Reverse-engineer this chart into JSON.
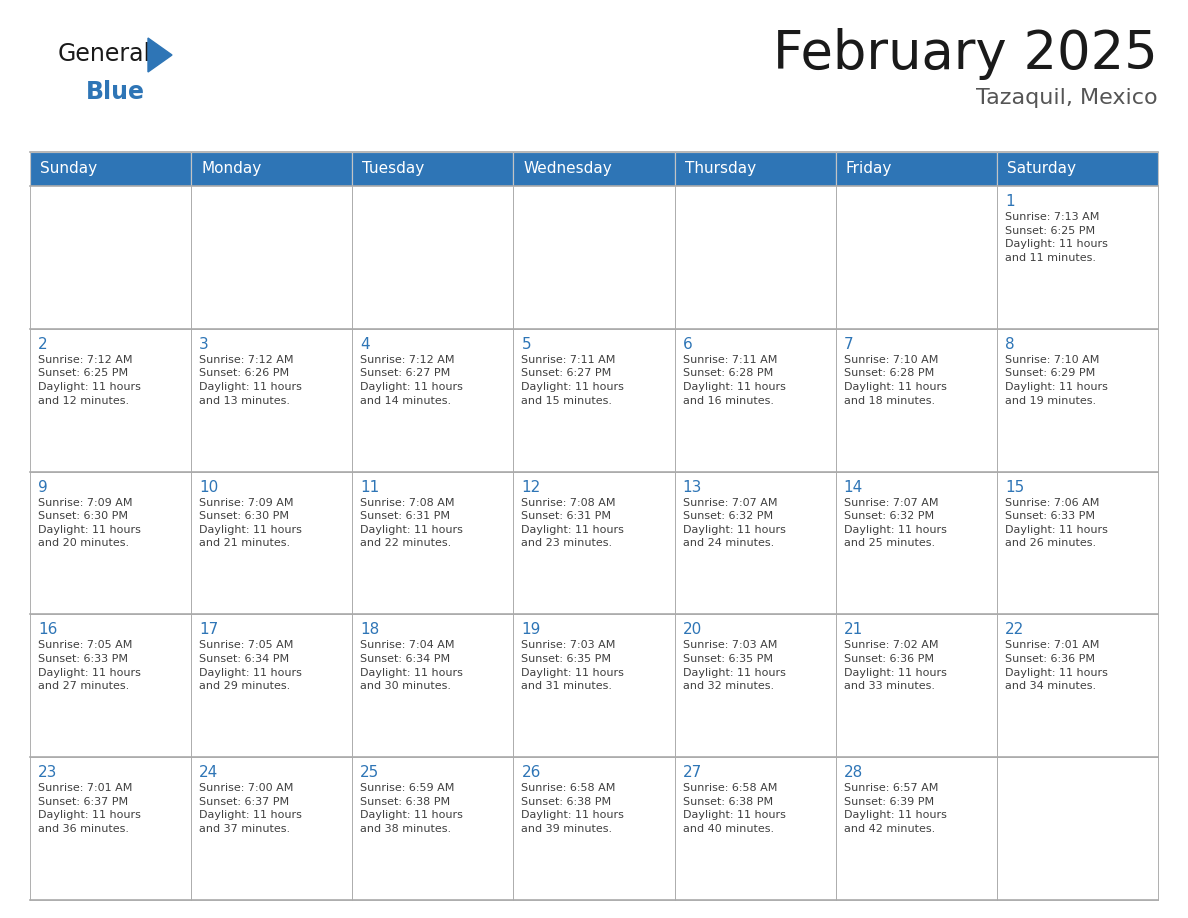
{
  "title": "February 2025",
  "subtitle": "Tazaquil, Mexico",
  "days_of_week": [
    "Sunday",
    "Monday",
    "Tuesday",
    "Wednesday",
    "Thursday",
    "Friday",
    "Saturday"
  ],
  "header_bg": "#2E75B6",
  "header_text": "#FFFFFF",
  "cell_bg": "#FFFFFF",
  "cell_border": "#AAAAAA",
  "day_num_color": "#2E75B6",
  "cell_text_color": "#404040",
  "title_color": "#1a1a1a",
  "subtitle_color": "#555555",
  "logo_general_color": "#1a1a1a",
  "logo_blue_color": "#2E75B6",
  "weeks": [
    [
      null,
      null,
      null,
      null,
      null,
      null,
      1
    ],
    [
      2,
      3,
      4,
      5,
      6,
      7,
      8
    ],
    [
      9,
      10,
      11,
      12,
      13,
      14,
      15
    ],
    [
      16,
      17,
      18,
      19,
      20,
      21,
      22
    ],
    [
      23,
      24,
      25,
      26,
      27,
      28,
      null
    ]
  ],
  "cell_data": {
    "1": {
      "sunrise": "7:13 AM",
      "sunset": "6:25 PM",
      "daylight": "11 hours and 11 minutes."
    },
    "2": {
      "sunrise": "7:12 AM",
      "sunset": "6:25 PM",
      "daylight": "11 hours and 12 minutes."
    },
    "3": {
      "sunrise": "7:12 AM",
      "sunset": "6:26 PM",
      "daylight": "11 hours and 13 minutes."
    },
    "4": {
      "sunrise": "7:12 AM",
      "sunset": "6:27 PM",
      "daylight": "11 hours and 14 minutes."
    },
    "5": {
      "sunrise": "7:11 AM",
      "sunset": "6:27 PM",
      "daylight": "11 hours and 15 minutes."
    },
    "6": {
      "sunrise": "7:11 AM",
      "sunset": "6:28 PM",
      "daylight": "11 hours and 16 minutes."
    },
    "7": {
      "sunrise": "7:10 AM",
      "sunset": "6:28 PM",
      "daylight": "11 hours and 18 minutes."
    },
    "8": {
      "sunrise": "7:10 AM",
      "sunset": "6:29 PM",
      "daylight": "11 hours and 19 minutes."
    },
    "9": {
      "sunrise": "7:09 AM",
      "sunset": "6:30 PM",
      "daylight": "11 hours and 20 minutes."
    },
    "10": {
      "sunrise": "7:09 AM",
      "sunset": "6:30 PM",
      "daylight": "11 hours and 21 minutes."
    },
    "11": {
      "sunrise": "7:08 AM",
      "sunset": "6:31 PM",
      "daylight": "11 hours and 22 minutes."
    },
    "12": {
      "sunrise": "7:08 AM",
      "sunset": "6:31 PM",
      "daylight": "11 hours and 23 minutes."
    },
    "13": {
      "sunrise": "7:07 AM",
      "sunset": "6:32 PM",
      "daylight": "11 hours and 24 minutes."
    },
    "14": {
      "sunrise": "7:07 AM",
      "sunset": "6:32 PM",
      "daylight": "11 hours and 25 minutes."
    },
    "15": {
      "sunrise": "7:06 AM",
      "sunset": "6:33 PM",
      "daylight": "11 hours and 26 minutes."
    },
    "16": {
      "sunrise": "7:05 AM",
      "sunset": "6:33 PM",
      "daylight": "11 hours and 27 minutes."
    },
    "17": {
      "sunrise": "7:05 AM",
      "sunset": "6:34 PM",
      "daylight": "11 hours and 29 minutes."
    },
    "18": {
      "sunrise": "7:04 AM",
      "sunset": "6:34 PM",
      "daylight": "11 hours and 30 minutes."
    },
    "19": {
      "sunrise": "7:03 AM",
      "sunset": "6:35 PM",
      "daylight": "11 hours and 31 minutes."
    },
    "20": {
      "sunrise": "7:03 AM",
      "sunset": "6:35 PM",
      "daylight": "11 hours and 32 minutes."
    },
    "21": {
      "sunrise": "7:02 AM",
      "sunset": "6:36 PM",
      "daylight": "11 hours and 33 minutes."
    },
    "22": {
      "sunrise": "7:01 AM",
      "sunset": "6:36 PM",
      "daylight": "11 hours and 34 minutes."
    },
    "23": {
      "sunrise": "7:01 AM",
      "sunset": "6:37 PM",
      "daylight": "11 hours and 36 minutes."
    },
    "24": {
      "sunrise": "7:00 AM",
      "sunset": "6:37 PM",
      "daylight": "11 hours and 37 minutes."
    },
    "25": {
      "sunrise": "6:59 AM",
      "sunset": "6:38 PM",
      "daylight": "11 hours and 38 minutes."
    },
    "26": {
      "sunrise": "6:58 AM",
      "sunset": "6:38 PM",
      "daylight": "11 hours and 39 minutes."
    },
    "27": {
      "sunrise": "6:58 AM",
      "sunset": "6:38 PM",
      "daylight": "11 hours and 40 minutes."
    },
    "28": {
      "sunrise": "6:57 AM",
      "sunset": "6:39 PM",
      "daylight": "11 hours and 42 minutes."
    }
  },
  "fig_width": 11.88,
  "fig_height": 9.18,
  "dpi": 100
}
